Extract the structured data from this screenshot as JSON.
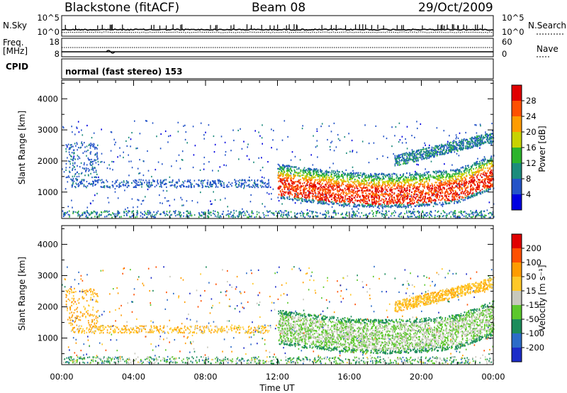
{
  "header": {
    "station": "Blackstone (fitACF)",
    "beam": "Beam 08",
    "date": "29/Oct/2009"
  },
  "strips": {
    "nsky_label": "N.Sky",
    "nsearch_label": "N.Search",
    "nsky_ticks": [
      "10^5",
      "10^0"
    ],
    "freq_label_1": "Freq.",
    "freq_label_2": "[MHz]",
    "freq_ticks": [
      "18",
      "8"
    ],
    "nave_label": "Nave",
    "nave_ticks": [
      "60",
      "0"
    ],
    "cpid_label": "CPID",
    "mode_text": "normal (fast stereo) 153"
  },
  "time_axis": {
    "ticks": [
      "00:00",
      "04:00",
      "08:00",
      "12:00",
      "16:00",
      "20:00",
      "00:00"
    ],
    "label": "Time UT"
  },
  "chart_data": [
    {
      "type": "heatmap",
      "title": "",
      "xlabel": "",
      "ylabel": "Slant Range [km]",
      "x_range_hours_ut": [
        0,
        24
      ],
      "ylim": [
        150,
        4600
      ],
      "y_ticks": [
        "1000",
        "2000",
        "3000",
        "4000"
      ],
      "colorbar": {
        "label": "Power [dB]",
        "ticks": [
          "4",
          "8",
          "12",
          "16",
          "20",
          "24",
          "28"
        ],
        "colors": [
          "#0000e0",
          "#2454c8",
          "#1c8c7c",
          "#2cb42c",
          "#c8d200",
          "#ff9c00",
          "#ff5000",
          "#e00000"
        ],
        "range": [
          0,
          32
        ]
      },
      "features": [
        {
          "name": "ionospheric band",
          "t_start": 12.0,
          "t_end": 24.0,
          "range_km": [
            700,
            1900
          ],
          "peak_db": 30
        },
        {
          "name": "morning echoes",
          "t_start": 0.5,
          "t_end": 11.5,
          "range_km": [
            1100,
            1500
          ],
          "peak_db": 10
        },
        {
          "name": "ground scatter rise",
          "t_start": 19.0,
          "t_end": 24.0,
          "range_km": [
            2000,
            2900
          ],
          "peak_db": 12
        },
        {
          "name": "near range echoes",
          "t_start": 0.0,
          "t_end": 24.0,
          "range_km": [
            180,
            400
          ],
          "peak_db": 16
        }
      ]
    },
    {
      "type": "heatmap",
      "title": "",
      "xlabel": "Time UT",
      "ylabel": "Slant Range [km]",
      "x_range_hours_ut": [
        0,
        24
      ],
      "ylim": [
        150,
        4600
      ],
      "y_ticks": [
        "1000",
        "2000",
        "3000",
        "4000"
      ],
      "colorbar": {
        "label": "Velocity [m s⁻¹]",
        "ticks": [
          "200",
          "100",
          "50",
          "15",
          "-15",
          "-50",
          "-100",
          "-200"
        ],
        "colors": [
          "#1c2cc8",
          "#2c6cc8",
          "#1c8c5c",
          "#5cc82c",
          "#c8c8bc",
          "#ffc828",
          "#ff9c00",
          "#ff5000",
          "#e00000"
        ],
        "range": [
          -250,
          250
        ]
      },
      "features": [
        {
          "name": "ground scatter band",
          "t_start": 12.0,
          "t_end": 24.0,
          "range_km": [
            900,
            1900
          ],
          "velocity": 0
        },
        {
          "name": "morning echoes",
          "t_start": 0.5,
          "t_end": 3.0,
          "range_km": [
            1000,
            1600
          ],
          "velocity": -60
        },
        {
          "name": "late day echoes",
          "t_start": 20.0,
          "t_end": 24.0,
          "range_km": [
            2300,
            2900
          ],
          "velocity": -40
        }
      ]
    }
  ]
}
